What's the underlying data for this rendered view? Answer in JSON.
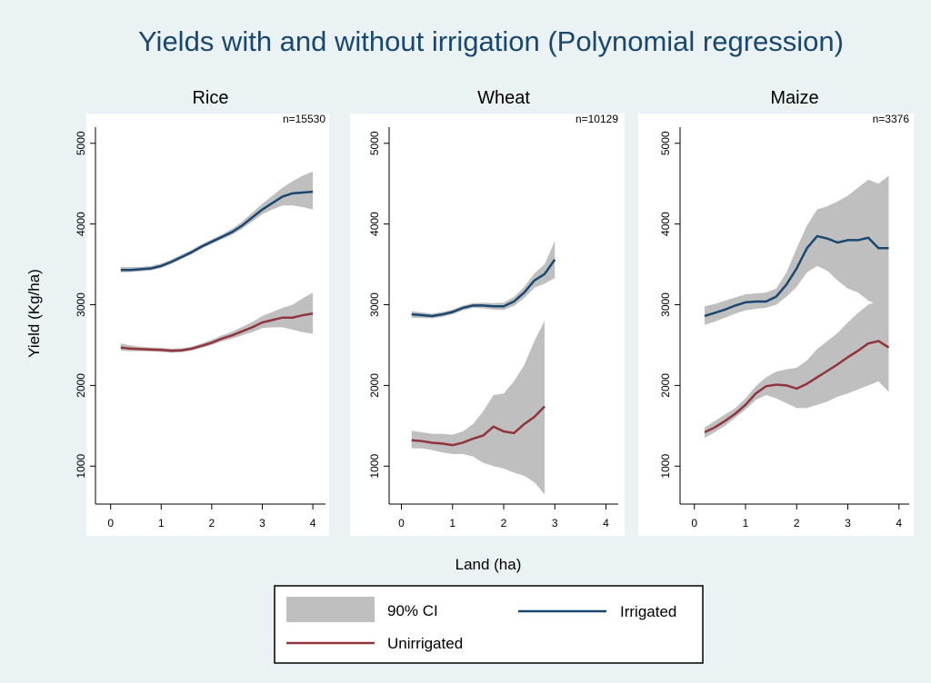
{
  "figure": {
    "title": "Yields with and without irrigation (Polynomial regression)",
    "x_label": "Land (ha)",
    "y_label": "Yield (Kg/ha)"
  },
  "chart_data": [
    {
      "type": "line",
      "title": "Rice",
      "annotation": "n=15530",
      "xlim": [
        -0.3,
        4.25
      ],
      "ylim": [
        530,
        5200
      ],
      "xticks": [
        0,
        1,
        2,
        3,
        4
      ],
      "yticks": [
        1000,
        2000,
        3000,
        4000,
        5000
      ],
      "band": {
        "name": "90% CI",
        "color": "#bfbfbf"
      },
      "x": [
        0.2,
        0.4,
        0.6,
        0.8,
        1.0,
        1.2,
        1.4,
        1.6,
        1.8,
        2.0,
        2.2,
        2.4,
        2.6,
        2.8,
        3.0,
        3.2,
        3.4,
        3.6,
        3.8,
        4.0
      ],
      "series": [
        {
          "name": "Irrigated",
          "color": "#1a476f",
          "values": [
            3430,
            3430,
            3440,
            3450,
            3480,
            3530,
            3590,
            3650,
            3720,
            3780,
            3840,
            3900,
            3980,
            4080,
            4180,
            4260,
            4340,
            4380,
            4390,
            4400
          ],
          "ci_lower": [
            3400,
            3405,
            3415,
            3425,
            3455,
            3505,
            3565,
            3625,
            3695,
            3755,
            3810,
            3865,
            3940,
            4030,
            4120,
            4180,
            4230,
            4230,
            4210,
            4180
          ],
          "ci_upper": [
            3470,
            3465,
            3470,
            3480,
            3510,
            3560,
            3620,
            3680,
            3750,
            3810,
            3870,
            3940,
            4030,
            4140,
            4250,
            4350,
            4450,
            4530,
            4600,
            4650
          ]
        },
        {
          "name": "Unirrigated",
          "color": "#90353b",
          "values": [
            2470,
            2455,
            2450,
            2445,
            2440,
            2430,
            2435,
            2455,
            2490,
            2530,
            2580,
            2620,
            2670,
            2720,
            2780,
            2810,
            2840,
            2840,
            2870,
            2890
          ],
          "ci_lower": [
            2430,
            2425,
            2425,
            2420,
            2415,
            2405,
            2410,
            2430,
            2465,
            2500,
            2545,
            2580,
            2620,
            2660,
            2710,
            2720,
            2720,
            2690,
            2660,
            2640
          ],
          "ci_upper": [
            2520,
            2495,
            2480,
            2470,
            2465,
            2455,
            2460,
            2480,
            2520,
            2565,
            2620,
            2665,
            2725,
            2785,
            2860,
            2910,
            2960,
            3000,
            3080,
            3150
          ]
        }
      ]
    },
    {
      "type": "line",
      "title": "Wheat",
      "annotation": "n=10129",
      "xlim": [
        -0.24,
        4.24
      ],
      "ylim": [
        530,
        5200
      ],
      "xticks": [
        0,
        1,
        2,
        3,
        4
      ],
      "yticks": [
        1000,
        2000,
        3000,
        4000,
        5000
      ],
      "band": {
        "name": "90% CI",
        "color": "#bfbfbf"
      },
      "x": [
        0.2,
        0.4,
        0.6,
        0.8,
        1.0,
        1.2,
        1.4,
        1.6,
        1.8,
        2.0,
        2.2,
        2.4,
        2.6,
        2.8,
        3.0
      ],
      "series": [
        {
          "name": "Irrigated",
          "color": "#1a476f",
          "values": [
            2880,
            2870,
            2860,
            2880,
            2910,
            2960,
            2990,
            2990,
            2980,
            2980,
            3040,
            3150,
            3300,
            3380,
            3560
          ],
          "ci_lower": [
            2840,
            2835,
            2830,
            2850,
            2880,
            2930,
            2960,
            2955,
            2940,
            2935,
            2985,
            3080,
            3210,
            3260,
            3330
          ],
          "ci_upper": [
            2920,
            2905,
            2890,
            2910,
            2940,
            2990,
            3020,
            3025,
            3020,
            3025,
            3095,
            3220,
            3390,
            3500,
            3790
          ]
        },
        {
          "name": "Unirrigated",
          "color": "#90353b",
          "values": [
            1320,
            1310,
            1290,
            1280,
            1260,
            1290,
            1340,
            1380,
            1490,
            1430,
            1410,
            1520,
            1610,
            1740,
            null
          ],
          "ci_lower": [
            1220,
            1220,
            1200,
            1170,
            1150,
            1150,
            1120,
            1040,
            1000,
            970,
            920,
            880,
            800,
            650,
            null
          ],
          "ci_upper": [
            1440,
            1420,
            1400,
            1400,
            1390,
            1430,
            1520,
            1680,
            1880,
            1900,
            2050,
            2250,
            2550,
            2800,
            null
          ]
        }
      ]
    },
    {
      "type": "line",
      "title": "Maize",
      "annotation": "n=3376",
      "xlim": [
        -0.28,
        4.2
      ],
      "ylim": [
        530,
        5200
      ],
      "xticks": [
        0,
        1,
        2,
        3,
        4
      ],
      "yticks": [
        1000,
        2000,
        3000,
        4000,
        5000
      ],
      "band": {
        "name": "90% CI",
        "color": "#bfbfbf"
      },
      "x": [
        0.2,
        0.4,
        0.6,
        0.8,
        1.0,
        1.2,
        1.4,
        1.6,
        1.8,
        2.0,
        2.2,
        2.4,
        2.6,
        2.8,
        3.0,
        3.2,
        3.4,
        3.6,
        3.8
      ],
      "series": [
        {
          "name": "Irrigated",
          "color": "#1a476f",
          "values": [
            2860,
            2900,
            2940,
            2990,
            3030,
            3040,
            3040,
            3100,
            3250,
            3450,
            3700,
            3850,
            3820,
            3770,
            3800,
            3800,
            3830,
            3700,
            3700
          ],
          "ci_lower": [
            2750,
            2790,
            2840,
            2890,
            2930,
            2950,
            2960,
            3000,
            3100,
            3220,
            3400,
            3480,
            3420,
            3300,
            3200,
            3150,
            3050,
            3000,
            2900
          ],
          "ci_upper": [
            2980,
            3010,
            3050,
            3090,
            3130,
            3140,
            3150,
            3200,
            3400,
            3700,
            3980,
            4180,
            4220,
            4280,
            4350,
            4450,
            4550,
            4500,
            4600
          ]
        },
        {
          "name": "Unirrigated",
          "color": "#90353b",
          "values": [
            1420,
            1480,
            1560,
            1650,
            1760,
            1900,
            1990,
            2010,
            2000,
            1960,
            2020,
            2100,
            2180,
            2260,
            2350,
            2430,
            2520,
            2550,
            2470
          ],
          "ci_lower": [
            1350,
            1420,
            1500,
            1600,
            1700,
            1820,
            1880,
            1840,
            1780,
            1720,
            1720,
            1760,
            1800,
            1860,
            1900,
            1950,
            2000,
            2050,
            1920
          ],
          "ci_upper": [
            1480,
            1560,
            1640,
            1720,
            1840,
            1990,
            2100,
            2170,
            2200,
            2220,
            2310,
            2450,
            2550,
            2650,
            2780,
            2900,
            3000,
            3050,
            3000
          ]
        }
      ]
    }
  ]
}
